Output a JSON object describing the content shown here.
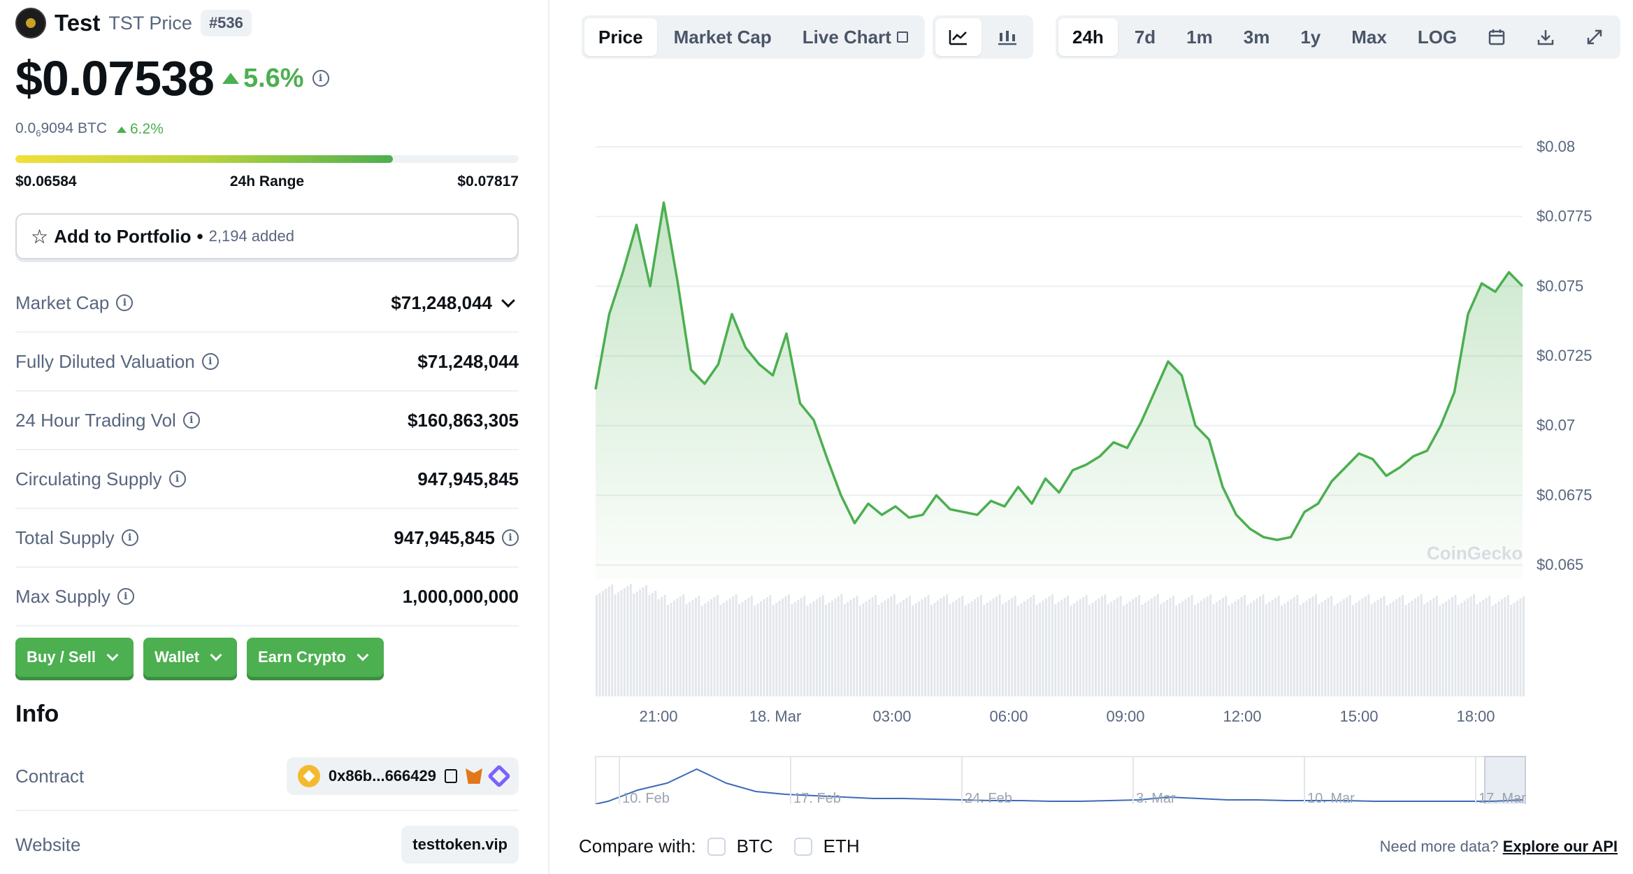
{
  "coin": {
    "name": "Test",
    "symbol_label": "TST Price",
    "rank": "#536"
  },
  "price": {
    "value": "$0.07538",
    "change": "5.6%"
  },
  "btc": {
    "prefix": "0.0",
    "sub": "6",
    "suffix": "9094 BTC",
    "change": "6.2%"
  },
  "range": {
    "low": "$0.06584",
    "label": "24h Range",
    "high": "$0.07817",
    "fill_fraction": 0.75
  },
  "portfolio": {
    "label": "Add to Portfolio",
    "dot": "•",
    "count": "2,194 added"
  },
  "stats": [
    {
      "key": "Market Cap",
      "value": "$71,248,044"
    },
    {
      "key": "Fully Diluted Valuation",
      "value": "$71,248,044"
    },
    {
      "key": "24 Hour Trading Vol",
      "value": "$160,863,305"
    },
    {
      "key": "Circulating Supply",
      "value": "947,945,845"
    },
    {
      "key": "Total Supply",
      "value": "947,945,845"
    },
    {
      "key": "Max Supply",
      "value": "1,000,000,000"
    }
  ],
  "actions": {
    "buy": "Buy / Sell",
    "wallet": "Wallet",
    "earn": "Earn Crypto"
  },
  "info": {
    "heading": "Info",
    "contract_label": "Contract",
    "contract_value": "0x86b...666429",
    "website_label": "Website",
    "website_value": "testtoken.vip"
  },
  "tabs": {
    "price": "Price",
    "market_cap": "Market Cap",
    "live_chart": "Live Chart"
  },
  "ranges": [
    "24h",
    "7d",
    "1m",
    "3m",
    "1y",
    "Max",
    "LOG"
  ],
  "compare": {
    "label": "Compare with:",
    "btc": "BTC",
    "eth": "ETH"
  },
  "api": {
    "text": "Need more data?",
    "link": "Explore our API"
  },
  "watermark": "CoinGecko",
  "colors": {
    "accent": "#4caf50",
    "line": "#4caf50",
    "nav_line": "#3f6ab8"
  },
  "chart_data": {
    "type": "area",
    "y_ticks": [
      "$0.08",
      "$0.0775",
      "$0.075",
      "$0.0725",
      "$0.07",
      "$0.0675",
      "$0.065"
    ],
    "ylim": [
      0.0645,
      0.0805
    ],
    "x_ticks": [
      "21:00",
      "18. Mar",
      "03:00",
      "06:00",
      "09:00",
      "12:00",
      "15:00",
      "18:00"
    ],
    "navigator_ticks": [
      "10. Feb",
      "17. Feb",
      "24. Feb",
      "3. Mar",
      "10. Mar",
      "17. Mar"
    ],
    "series": [
      {
        "values": [
          0.0713,
          0.074,
          0.0755,
          0.0772,
          0.075,
          0.078,
          0.0752,
          0.072,
          0.0715,
          0.0722,
          0.074,
          0.0728,
          0.0722,
          0.0718,
          0.0733,
          0.0708,
          0.0702,
          0.0688,
          0.0675,
          0.0665,
          0.0672,
          0.0668,
          0.0671,
          0.0667,
          0.0668,
          0.0675,
          0.067,
          0.0669,
          0.0668,
          0.0673,
          0.0671,
          0.0678,
          0.0672,
          0.0681,
          0.0676,
          0.0684,
          0.0686,
          0.0689,
          0.0694,
          0.0692,
          0.0701,
          0.0712,
          0.0723,
          0.0718,
          0.07,
          0.0695,
          0.0678,
          0.0668,
          0.0663,
          0.066,
          0.0659,
          0.066,
          0.0669,
          0.0672,
          0.068,
          0.0685,
          0.069,
          0.0688,
          0.0682,
          0.0685,
          0.0689,
          0.0691,
          0.07,
          0.0712,
          0.074,
          0.0751,
          0.0748,
          0.0755,
          0.075
        ]
      }
    ]
  }
}
